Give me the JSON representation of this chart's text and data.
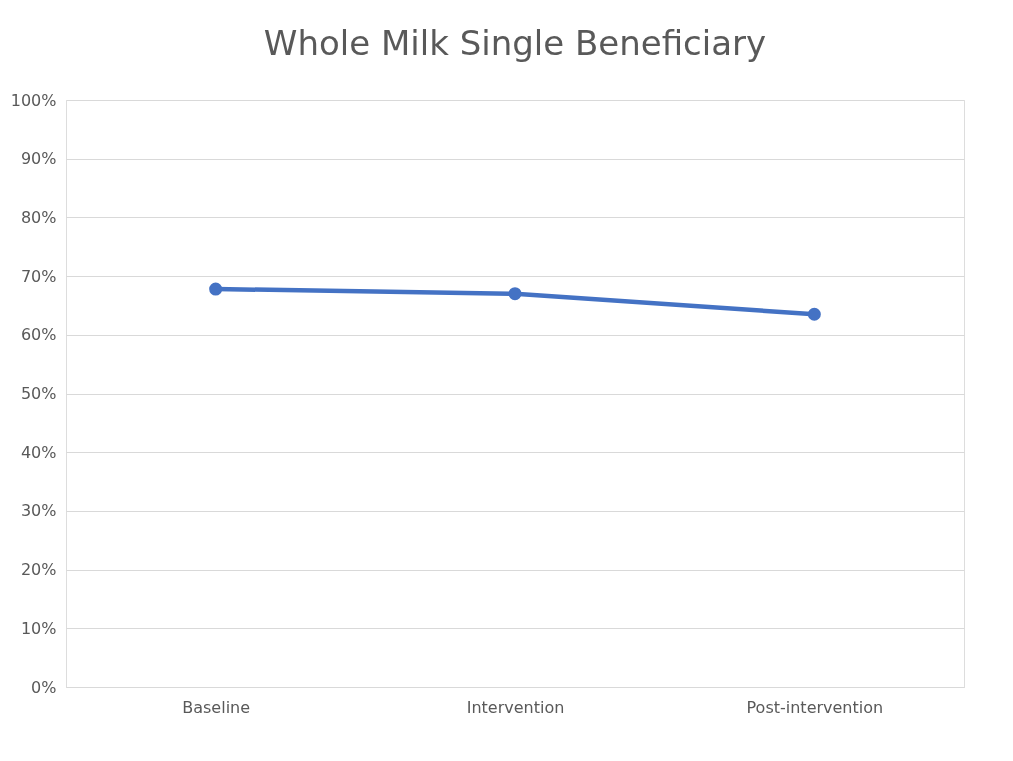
{
  "chart_data": {
    "type": "line",
    "title": "Whole Milk Single Beneficiary",
    "categories": [
      "Baseline",
      "Intervention",
      "Post-intervention"
    ],
    "series": [
      {
        "color": "#4472c4",
        "values": [
          67.8,
          67.0,
          63.5
        ]
      }
    ],
    "ylim": [
      0,
      100
    ],
    "yticks": [
      {
        "value": 0,
        "label": "0%"
      },
      {
        "value": 10,
        "label": "10%"
      },
      {
        "value": 20,
        "label": "20%"
      },
      {
        "value": 30,
        "label": "30%"
      },
      {
        "value": 40,
        "label": "40%"
      },
      {
        "value": 50,
        "label": "50%"
      },
      {
        "value": 60,
        "label": "60%"
      },
      {
        "value": 70,
        "label": "70%"
      },
      {
        "value": 80,
        "label": "80%"
      },
      {
        "value": 90,
        "label": "90%"
      },
      {
        "value": 100,
        "label": "100%"
      }
    ],
    "grid": "y",
    "marker": "circle",
    "line_style": "solid"
  }
}
